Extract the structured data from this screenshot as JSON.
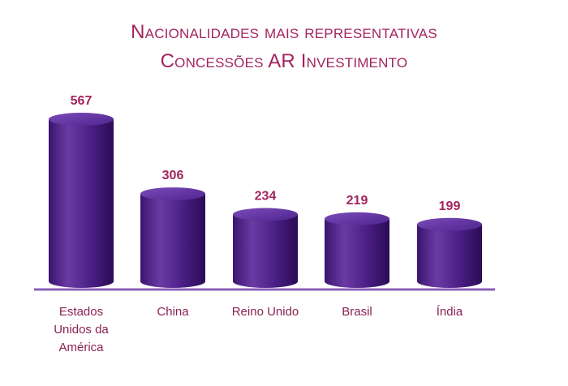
{
  "title": {
    "line1": "Nacionalidades mais representativas",
    "line2": "Concessões AR Investimento"
  },
  "colors": {
    "title": "#a3245e",
    "value_label": "#a3245e",
    "category_label": "#8a2252",
    "bar_light": "#6a3ba3",
    "bar_dark": "#2f0f5e",
    "baseline": "#8b5fb8"
  },
  "chart_data": {
    "type": "bar",
    "title": "Nacionalidades mais representativas – Concessões AR Investimento",
    "categories": [
      [
        "Estados",
        "Unidos da",
        "América"
      ],
      [
        "China"
      ],
      [
        "Reino Unido"
      ],
      [
        "Brasil"
      ],
      [
        "Índia"
      ]
    ],
    "values": [
      567,
      306,
      234,
      219,
      199
    ],
    "xlabel": "",
    "ylabel": "",
    "ylim": [
      0,
      600
    ],
    "grid": false,
    "legend": "none",
    "bar_style": "cylinder"
  }
}
